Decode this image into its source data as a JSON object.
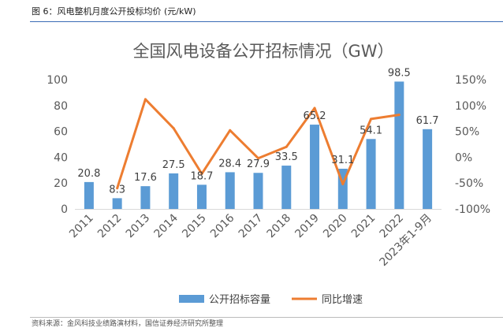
{
  "figure": {
    "caption": "图 6：风电整机月度公开投标均价 (元/kW)",
    "footer": "资料来源：金风科技业绩路演材料，国信证券经济研究所整理"
  },
  "chart_data": {
    "type": "bar",
    "title": "全国风电设备公开招标情况（GW）",
    "categories": [
      "2011",
      "2012",
      "2013",
      "2014",
      "2015",
      "2016",
      "2017",
      "2018",
      "2019",
      "2020",
      "2021",
      "2022",
      "2023年1-9月"
    ],
    "series": [
      {
        "name": "公开招标容量",
        "type": "bar",
        "axis": "left",
        "color": "#5b9bd5",
        "values": [
          20.8,
          8.3,
          17.6,
          27.5,
          18.7,
          28.4,
          27.9,
          33.5,
          65.2,
          31.1,
          54.1,
          98.5,
          61.7
        ],
        "labels": [
          "20.8",
          "8.3",
          "17.6",
          "27.5",
          "18.7",
          "28.4",
          "27.9",
          "33.5",
          "65.2",
          "31.1",
          "54.1",
          "98.5",
          "61.7"
        ]
      },
      {
        "name": "同比增速",
        "type": "line",
        "axis": "right",
        "color": "#ed7d31",
        "values": [
          null,
          -60,
          112,
          56,
          -32,
          52,
          -2,
          20,
          95,
          -52,
          74,
          82,
          null
        ]
      }
    ],
    "y_left": {
      "min": 0,
      "max": 100,
      "step": 20,
      "ticks": [
        "0",
        "20",
        "40",
        "60",
        "80",
        "100"
      ]
    },
    "y_right": {
      "min": -100,
      "max": 150,
      "step": 50,
      "ticks": [
        "-100%",
        "-50%",
        "0%",
        "50%",
        "100%",
        "150%"
      ]
    },
    "legend": {
      "position": "bottom"
    },
    "grid": false
  }
}
